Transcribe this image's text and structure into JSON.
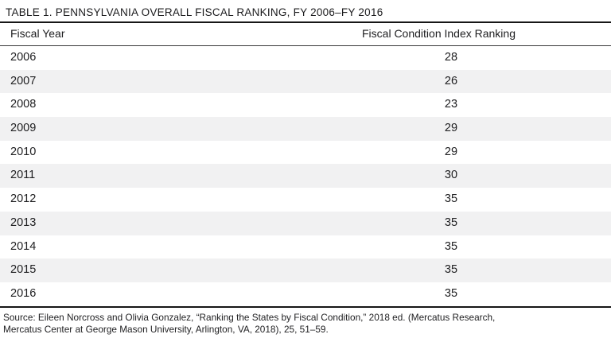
{
  "title": "TABLE 1. PENNSYLVANIA OVERALL FISCAL RANKING, FY 2006–FY 2016",
  "table": {
    "columns": [
      "Fiscal Year",
      "Fiscal Condition Index Ranking"
    ],
    "rows": [
      {
        "year": "2006",
        "rank": "28"
      },
      {
        "year": "2007",
        "rank": "26"
      },
      {
        "year": "2008",
        "rank": "23"
      },
      {
        "year": "2009",
        "rank": "29"
      },
      {
        "year": "2010",
        "rank": "29"
      },
      {
        "year": "2011",
        "rank": "30"
      },
      {
        "year": "2012",
        "rank": "35"
      },
      {
        "year": "2013",
        "rank": "35"
      },
      {
        "year": "2014",
        "rank": "35"
      },
      {
        "year": "2015",
        "rank": "35"
      },
      {
        "year": "2016",
        "rank": "35"
      }
    ]
  },
  "source": {
    "line1": "Source: Eileen Norcross and Olivia Gonzalez, “Ranking the States by Fiscal Condition,” 2018 ed. (Mercatus Research,",
    "line2": "Mercatus Center at George Mason University, Arlington, VA, 2018), 25, 51–59."
  },
  "colors": {
    "stripe": "#f1f1f2",
    "text": "#202022",
    "rule_heavy": "#161616",
    "rule_light": "#39393b"
  }
}
